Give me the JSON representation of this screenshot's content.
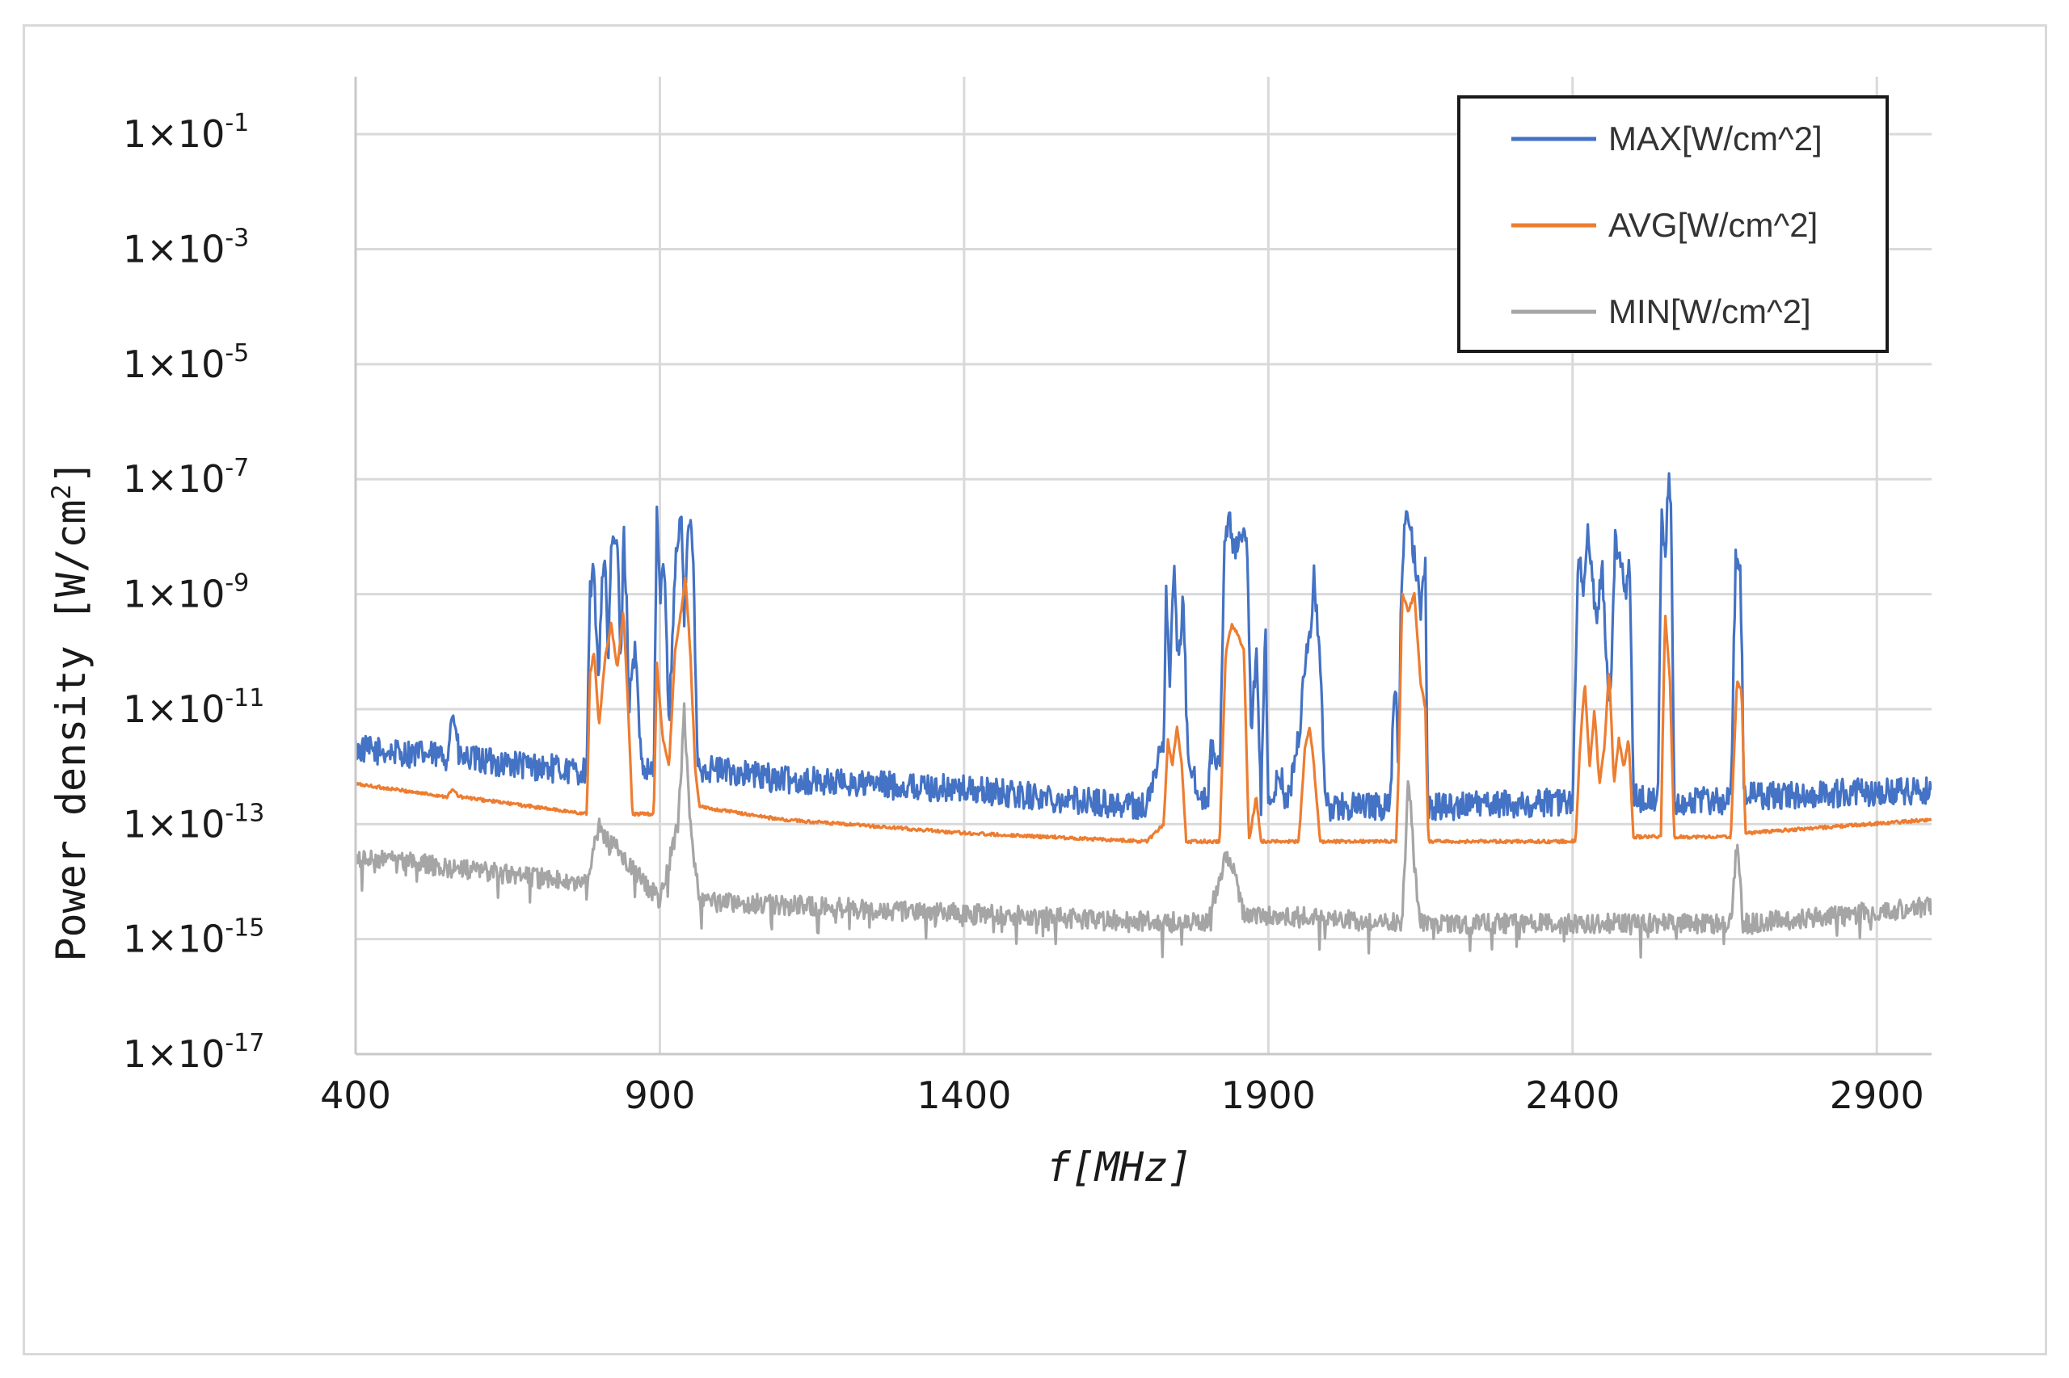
{
  "chart_data": {
    "type": "line",
    "title": "",
    "xlabel": "f[MHz]",
    "ylabel": "Power density [W/cm²]",
    "ylabel_base": "Power density [W/cm",
    "ylabel_sup": "2",
    "ylabel_close": "]",
    "y_scale": "log",
    "xlim": [
      400,
      2990
    ],
    "ylim": [
      1e-17,
      1
    ],
    "grid": true,
    "legend": "top-right",
    "x_ticks": [
      400,
      900,
      1400,
      1900,
      2400,
      2900
    ],
    "x_tick_labels": [
      "400",
      "900",
      "1400",
      "1900",
      "2400",
      "2900"
    ],
    "y_ticks": [
      {
        "base": "1×10",
        "exp": "-1"
      },
      {
        "base": "1×10",
        "exp": "-3"
      },
      {
        "base": "1×10",
        "exp": "-5"
      },
      {
        "base": "1×10",
        "exp": "-7"
      },
      {
        "base": "1×10",
        "exp": "-9"
      },
      {
        "base": "1×10",
        "exp": "-11"
      },
      {
        "base": "1×10",
        "exp": "-13"
      },
      {
        "base": "1×10",
        "exp": "-15"
      },
      {
        "base": "1×10",
        "exp": "-17"
      }
    ],
    "series": [
      {
        "name": "MAX[W/cm^2]",
        "color": "#4472c4",
        "noise": 0.7,
        "points": [
          [
            400,
            2e-12
          ],
          [
            550,
            1.5e-12
          ],
          [
            560,
            1e-11
          ],
          [
            570,
            1.4e-12
          ],
          [
            780,
            8e-13
          ],
          [
            785,
            1e-09
          ],
          [
            790,
            3e-09
          ],
          [
            800,
            4e-11
          ],
          [
            805,
            2e-09
          ],
          [
            810,
            5e-09
          ],
          [
            815,
            5e-11
          ],
          [
            820,
            6e-09
          ],
          [
            830,
            1e-08
          ],
          [
            836,
            4e-11
          ],
          [
            840,
            1.5e-08
          ],
          [
            845,
            1e-09
          ],
          [
            850,
            6e-12
          ],
          [
            852,
            5e-11
          ],
          [
            860,
            1e-10
          ],
          [
            870,
            8e-13
          ],
          [
            890,
            8e-13
          ],
          [
            895,
            3e-08
          ],
          [
            900,
            1e-09
          ],
          [
            908,
            3e-09
          ],
          [
            915,
            6e-12
          ],
          [
            925,
            3e-09
          ],
          [
            935,
            3e-08
          ],
          [
            940,
            4e-10
          ],
          [
            948,
            3e-08
          ],
          [
            955,
            3e-09
          ],
          [
            962,
            1e-12
          ],
          [
            1100,
            6e-13
          ],
          [
            1400,
            4e-13
          ],
          [
            1700,
            2e-13
          ],
          [
            1728,
            3e-12
          ],
          [
            1732,
            1e-09
          ],
          [
            1738,
            4e-11
          ],
          [
            1745,
            3e-09
          ],
          [
            1752,
            5e-11
          ],
          [
            1760,
            1e-09
          ],
          [
            1768,
            1e-12
          ],
          [
            1800,
            2e-13
          ],
          [
            1805,
            2e-12
          ],
          [
            1820,
            8e-13
          ],
          [
            1828,
            1e-08
          ],
          [
            1835,
            2e-08
          ],
          [
            1845,
            5e-09
          ],
          [
            1855,
            1e-08
          ],
          [
            1865,
            6e-09
          ],
          [
            1872,
            3e-12
          ],
          [
            1880,
            1e-10
          ],
          [
            1888,
            2e-13
          ],
          [
            1895,
            3e-10
          ],
          [
            1900,
            2e-13
          ],
          [
            1920,
            8e-13
          ],
          [
            1930,
            2e-13
          ],
          [
            1950,
            3e-12
          ],
          [
            1960,
            6e-11
          ],
          [
            1968,
            2e-10
          ],
          [
            1975,
            2e-09
          ],
          [
            1985,
            5e-11
          ],
          [
            1995,
            2e-13
          ],
          [
            2100,
            2e-13
          ],
          [
            2108,
            4e-11
          ],
          [
            2114,
            1e-12
          ],
          [
            2118,
            1e-09
          ],
          [
            2125,
            2e-08
          ],
          [
            2135,
            1e-08
          ],
          [
            2142,
            3e-09
          ],
          [
            2150,
            5e-10
          ],
          [
            2158,
            3e-09
          ],
          [
            2162,
            2e-13
          ],
          [
            2400,
            2.5e-13
          ],
          [
            2410,
            6e-09
          ],
          [
            2416,
            1e-09
          ],
          [
            2425,
            1e-08
          ],
          [
            2432,
            2e-09
          ],
          [
            2440,
            3e-10
          ],
          [
            2448,
            4e-09
          ],
          [
            2455,
            1e-10
          ],
          [
            2462,
            1e-11
          ],
          [
            2470,
            8e-09
          ],
          [
            2478,
            5e-09
          ],
          [
            2486,
            1e-09
          ],
          [
            2494,
            3e-09
          ],
          [
            2500,
            3e-13
          ],
          [
            2540,
            2.5e-13
          ],
          [
            2546,
            3e-08
          ],
          [
            2552,
            4e-09
          ],
          [
            2558,
            1e-07
          ],
          [
            2562,
            6e-08
          ],
          [
            2567,
            2.5e-13
          ],
          [
            2660,
            2.5e-13
          ],
          [
            2668,
            4e-09
          ],
          [
            2676,
            2e-09
          ],
          [
            2682,
            3e-13
          ],
          [
            2990,
            4e-13
          ]
        ]
      },
      {
        "name": "AVG[W/cm^2]",
        "color": "#ed7d31",
        "noise": 0.08,
        "points": [
          [
            400,
            5e-13
          ],
          [
            550,
            3e-13
          ],
          [
            560,
            4e-13
          ],
          [
            570,
            3e-13
          ],
          [
            780,
            1.5e-13
          ],
          [
            785,
            4e-11
          ],
          [
            792,
            1e-10
          ],
          [
            800,
            5e-12
          ],
          [
            810,
            8e-11
          ],
          [
            820,
            3e-10
          ],
          [
            830,
            5e-11
          ],
          [
            840,
            5e-10
          ],
          [
            848,
            1e-11
          ],
          [
            855,
            1.5e-13
          ],
          [
            890,
            1.5e-13
          ],
          [
            895,
            6e-11
          ],
          [
            905,
            3e-12
          ],
          [
            915,
            1e-12
          ],
          [
            925,
            1e-10
          ],
          [
            935,
            5e-10
          ],
          [
            942,
            2e-09
          ],
          [
            950,
            1e-10
          ],
          [
            958,
            1e-12
          ],
          [
            965,
            2e-13
          ],
          [
            1100,
            1.2e-13
          ],
          [
            1400,
            7e-14
          ],
          [
            1700,
            5e-14
          ],
          [
            1728,
            1e-13
          ],
          [
            1735,
            3e-12
          ],
          [
            1742,
            1e-12
          ],
          [
            1750,
            5e-12
          ],
          [
            1758,
            1e-12
          ],
          [
            1765,
            5e-14
          ],
          [
            1820,
            5e-14
          ],
          [
            1830,
            1e-10
          ],
          [
            1840,
            3e-10
          ],
          [
            1850,
            2e-10
          ],
          [
            1860,
            1e-10
          ],
          [
            1868,
            5e-14
          ],
          [
            1880,
            3e-13
          ],
          [
            1888,
            5e-14
          ],
          [
            1950,
            5e-14
          ],
          [
            1960,
            2e-12
          ],
          [
            1968,
            5e-12
          ],
          [
            1975,
            1e-12
          ],
          [
            1985,
            5e-14
          ],
          [
            2110,
            5e-14
          ],
          [
            2114,
            8e-13
          ],
          [
            2120,
            1e-09
          ],
          [
            2130,
            5e-10
          ],
          [
            2140,
            1e-09
          ],
          [
            2150,
            3e-11
          ],
          [
            2158,
            1e-11
          ],
          [
            2163,
            5e-14
          ],
          [
            2405,
            5e-14
          ],
          [
            2412,
            2e-12
          ],
          [
            2420,
            3e-11
          ],
          [
            2428,
            1e-12
          ],
          [
            2436,
            1e-11
          ],
          [
            2444,
            5e-13
          ],
          [
            2452,
            2e-12
          ],
          [
            2460,
            5e-11
          ],
          [
            2468,
            5e-13
          ],
          [
            2476,
            3e-12
          ],
          [
            2484,
            1e-12
          ],
          [
            2492,
            3e-12
          ],
          [
            2500,
            6e-14
          ],
          [
            2545,
            6e-14
          ],
          [
            2552,
            5e-10
          ],
          [
            2560,
            3e-11
          ],
          [
            2567,
            6e-14
          ],
          [
            2660,
            6e-14
          ],
          [
            2670,
            3e-11
          ],
          [
            2678,
            2e-11
          ],
          [
            2684,
            7e-14
          ],
          [
            2990,
            1.2e-13
          ]
        ]
      },
      {
        "name": "MIN[W/cm^2]",
        "color": "#a5a5a5",
        "noise": 1.6,
        "points": [
          [
            400,
            3e-14
          ],
          [
            780,
            1e-14
          ],
          [
            800,
            1e-13
          ],
          [
            820,
            5e-14
          ],
          [
            900,
            5e-15
          ],
          [
            930,
            1e-13
          ],
          [
            940,
            1e-11
          ],
          [
            950,
            1e-13
          ],
          [
            965,
            5e-15
          ],
          [
            1400,
            3e-15
          ],
          [
            1800,
            2e-15
          ],
          [
            1830,
            3e-14
          ],
          [
            1840,
            2e-14
          ],
          [
            1860,
            3e-15
          ],
          [
            2120,
            2e-15
          ],
          [
            2130,
            1e-12
          ],
          [
            2140,
            2e-14
          ],
          [
            2150,
            2e-15
          ],
          [
            2660,
            2e-15
          ],
          [
            2670,
            5e-14
          ],
          [
            2680,
            2e-15
          ],
          [
            2990,
            4e-15
          ]
        ]
      }
    ]
  }
}
